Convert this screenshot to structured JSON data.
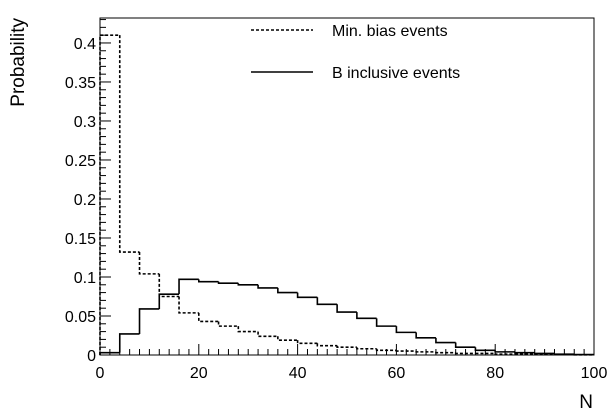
{
  "chart_data": {
    "type": "step",
    "xlabel": "N",
    "ylabel": "Probability",
    "xlim": [
      0,
      100
    ],
    "ylim": [
      0,
      0.432
    ],
    "bin_width": 4,
    "x_ticks": [
      "0",
      "20",
      "40",
      "60",
      "80",
      "100"
    ],
    "y_ticks": [
      "0",
      "0.05",
      "0.1",
      "0.15",
      "0.2",
      "0.25",
      "0.3",
      "0.35",
      "0.4"
    ],
    "legend_position": "top-right",
    "series": [
      {
        "name": "Min. bias events",
        "style": "dashed",
        "values": [
          0.41,
          0.132,
          0.104,
          0.075,
          0.054,
          0.043,
          0.037,
          0.03,
          0.024,
          0.019,
          0.015,
          0.012,
          0.01,
          0.008,
          0.006,
          0.005,
          0.004,
          0.003,
          0.002,
          0.002,
          0.001,
          0.001,
          0.001,
          0.0005,
          0.0003
        ]
      },
      {
        "name": "B inclusive events",
        "style": "solid",
        "values": [
          0.003,
          0.027,
          0.059,
          0.078,
          0.097,
          0.094,
          0.092,
          0.09,
          0.086,
          0.08,
          0.074,
          0.065,
          0.055,
          0.047,
          0.037,
          0.029,
          0.022,
          0.016,
          0.01,
          0.006,
          0.004,
          0.003,
          0.002,
          0.001,
          0.0005
        ]
      }
    ]
  }
}
